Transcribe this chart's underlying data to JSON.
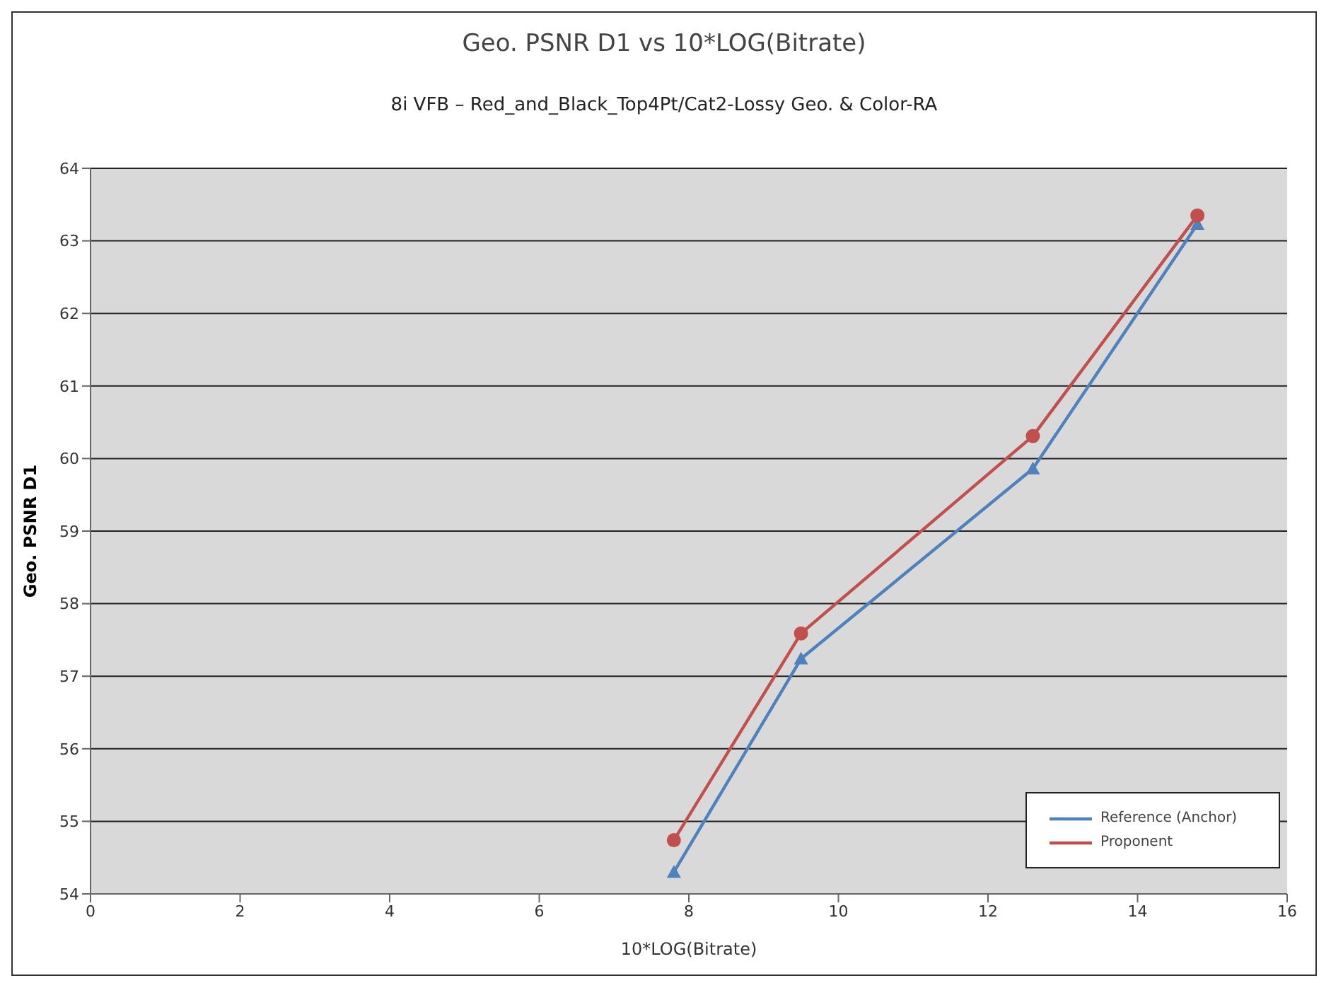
{
  "chart_data": {
    "type": "line",
    "title": "Geo. PSNR D1 vs 10*LOG(Bitrate)",
    "subtitle": "8i VFB – Red_and_Black_Top4Pt/Cat2-Lossy Geo. & Color-RA",
    "xlabel": "10*LOG(Bitrate)",
    "ylabel": "Geo. PSNR D1",
    "x": [
      7.8,
      9.5,
      12.6,
      14.8
    ],
    "series": [
      {
        "name": "Reference (Anchor)",
        "color": "#4f81bd",
        "values": [
          54.3,
          57.24,
          59.86,
          63.23
        ],
        "marker": "triangle"
      },
      {
        "name": "Proponent",
        "color": "#c0504d",
        "values": [
          54.74,
          57.59,
          60.31,
          63.35
        ],
        "marker": "circle"
      }
    ],
    "xlim": [
      0,
      16
    ],
    "xticks": [
      0,
      2,
      4,
      6,
      8,
      10,
      12,
      14,
      16
    ],
    "ylim": [
      54,
      64
    ],
    "yticks": [
      54,
      55,
      56,
      57,
      58,
      59,
      60,
      61,
      62,
      63,
      64
    ],
    "grid": "y",
    "legend": "bottom right"
  }
}
